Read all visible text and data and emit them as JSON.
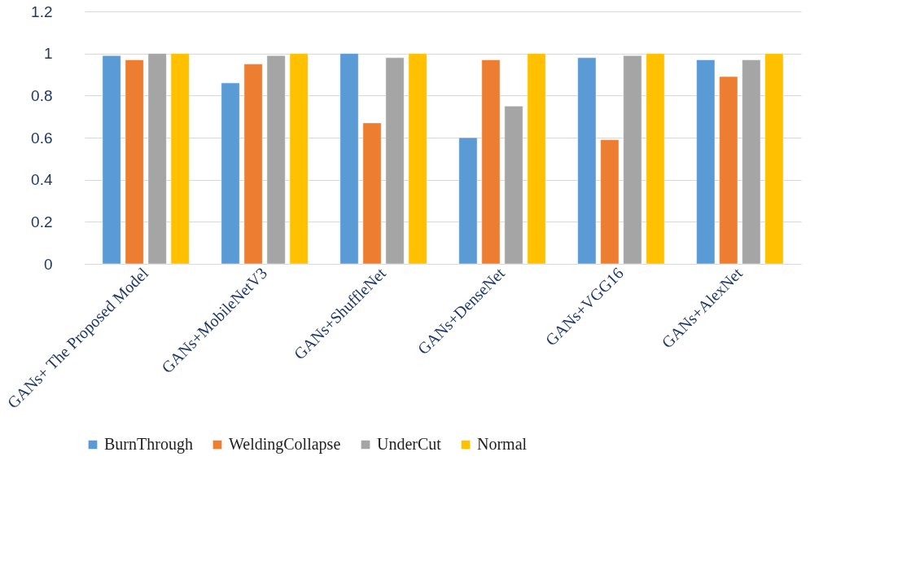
{
  "chart_data": {
    "type": "bar",
    "categories": [
      "GANs+ The Proposed Model",
      "GANs+MobileNetV3",
      "GANs+ShuffleNet",
      "GANs+DenseNet",
      "GANs+VGG16",
      "GANs+AlexNet"
    ],
    "series": [
      {
        "name": "BurnThrough",
        "color": "#5b9bd5",
        "values": [
          0.99,
          0.86,
          1,
          0.6,
          0.98,
          0.97
        ]
      },
      {
        "name": "WeldingCollapse",
        "color": "#ed7d31",
        "values": [
          0.97,
          0.95,
          0.67,
          0.97,
          0.59,
          0.89
        ]
      },
      {
        "name": "UnderCut",
        "color": "#a5a5a5",
        "values": [
          1,
          0.99,
          0.98,
          0.75,
          0.99,
          0.97
        ]
      },
      {
        "name": "Normal",
        "color": "#ffc000",
        "values": [
          1,
          1,
          1,
          1,
          1,
          1
        ]
      }
    ],
    "ylim": [
      0,
      1.2
    ],
    "yticks": [
      0,
      0.2,
      0.4,
      0.6,
      0.8,
      1,
      1.2
    ],
    "grid": "y",
    "legend": "bottom"
  }
}
